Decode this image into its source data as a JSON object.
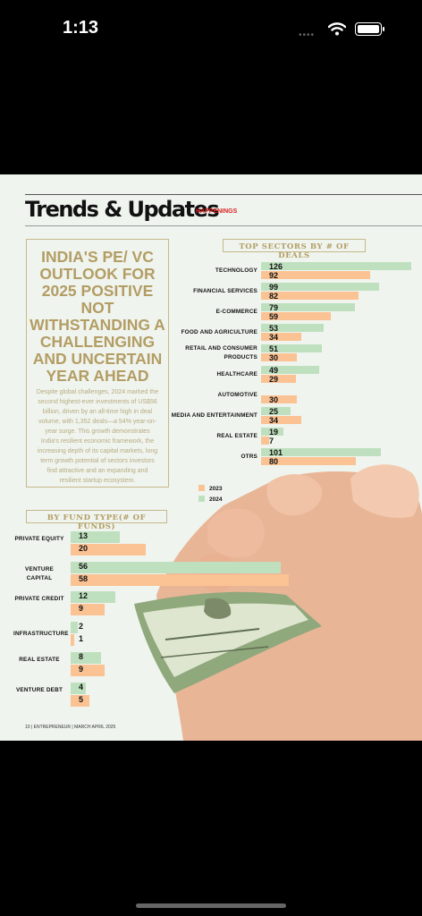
{
  "status": {
    "time": "1:13",
    "signal": "••••"
  },
  "header": {
    "title": "Trends & Updates",
    "tag": "HAPPENINGS"
  },
  "article": {
    "headline": "INDIA'S PE/ VC OUTLOOK FOR 2025 POSITIVE NOT WITHSTANDING A CHALLENGING AND UNCERTAIN YEAR AHEAD",
    "body": "Despite global challenges, 2024 marked the second highest-ever investments of US$56 billion, driven by an all-time high in deal volume, with 1,352 deals—a 54% year-on-year surge. This growth demonstrates India's resilient economic framework, the increasing depth of its capital markets, long term growth potential of sectors investors find attractive and an expanding and resilient startup ecosystem."
  },
  "footer": "10 | ENTREPRENEUR | MARCH APRIL 2025",
  "colors": {
    "2024": "#bfe0bf",
    "2023": "#fbc293"
  },
  "chart_data": [
    {
      "type": "bar",
      "orientation": "horizontal",
      "title": "TOP SECTORS BY # OF DEALS",
      "categories": [
        "TECHNOLOGY",
        "FINANCIAL SERVICES",
        "E-COMMERCE",
        "FOOD AND AGRICULTURE",
        "RETAIL AND CONSUMER PRODUCTS",
        "HEALTHCARE",
        "AUTOMOTIVE",
        "MEDIA AND ENTERTAINMENT",
        "REAL ESTATE",
        "OTRS"
      ],
      "series": [
        {
          "name": "2024",
          "values": [
            126,
            99,
            79,
            53,
            51,
            49,
            null,
            25,
            19,
            101
          ],
          "labels": [
            "126",
            "99",
            "79",
            "53",
            "51",
            "49",
            "",
            "25",
            "19",
            "101"
          ]
        },
        {
          "name": "2023",
          "values": [
            92,
            82,
            59,
            34,
            30,
            29,
            30,
            34,
            7,
            80
          ],
          "labels": [
            "92",
            "82",
            "59",
            "34",
            "30",
            "29",
            "30",
            "34",
            "7",
            "80"
          ]
        }
      ],
      "legend": [
        "2023",
        "2024"
      ]
    },
    {
      "type": "bar",
      "orientation": "horizontal",
      "title": "BY FUND TYPE(# OF FUNDS)",
      "categories": [
        "PRIVATE EQUITY",
        "VENTURE CAPITAL",
        "PRIVATE CREDIT",
        "INFRASTRUCTURE",
        "REAL ESTATE",
        "VENTURE DEBT"
      ],
      "series": [
        {
          "name": "2024",
          "values": [
            13,
            56,
            12,
            2,
            8,
            4
          ],
          "labels": [
            "13",
            "56",
            "12",
            "2",
            "8",
            "4"
          ]
        },
        {
          "name": "2023",
          "values": [
            20,
            58,
            9,
            1,
            9,
            5
          ],
          "labels": [
            "20",
            "58",
            "9",
            "1",
            "9",
            "5"
          ]
        }
      ]
    }
  ]
}
